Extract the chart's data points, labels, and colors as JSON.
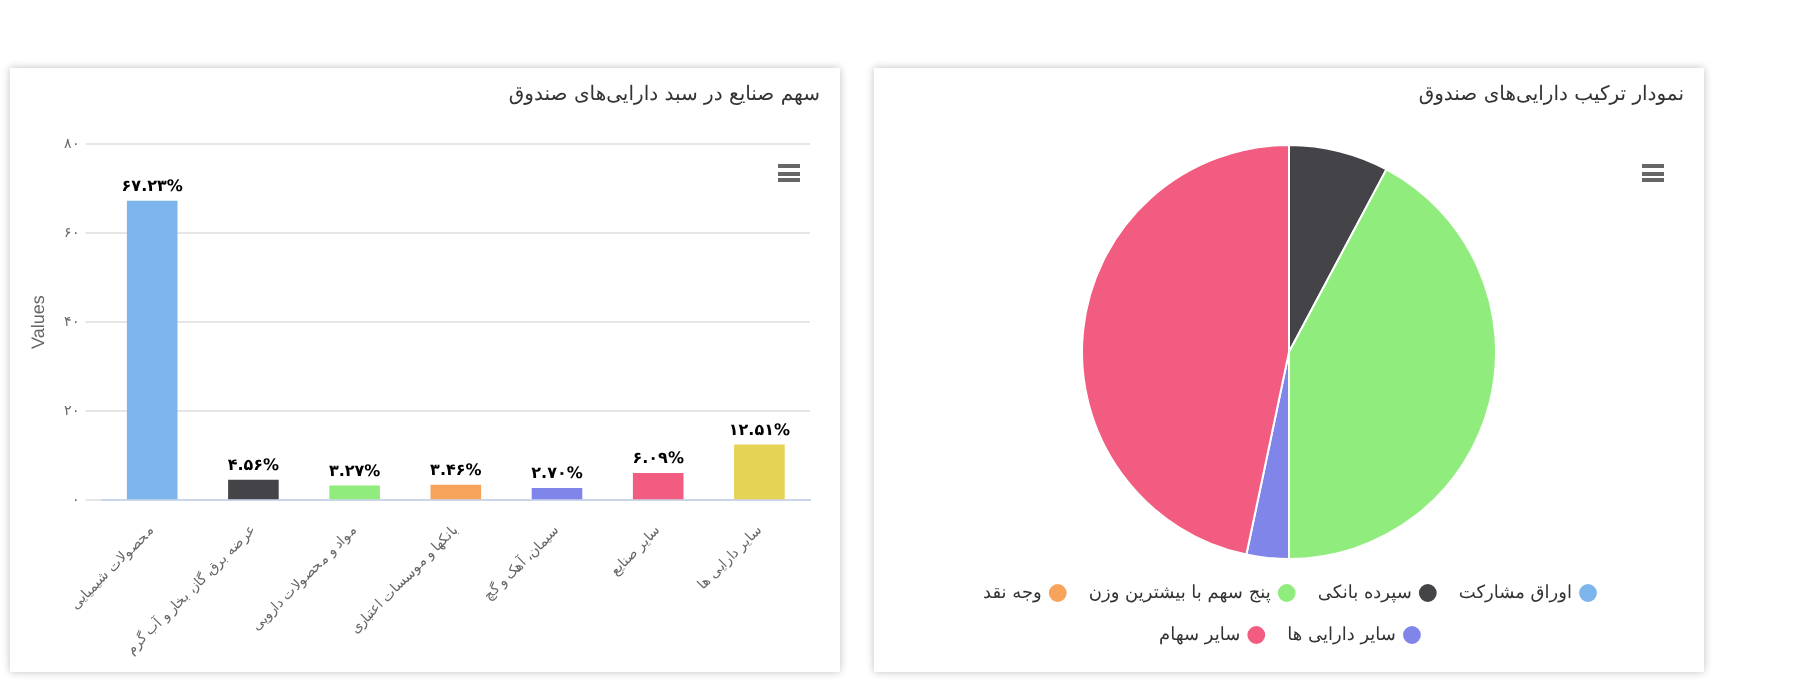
{
  "chart_data": [
    {
      "type": "bar",
      "title": "سهم صنایع در سبد دارایی‌های صندوق",
      "ylabel": "Values",
      "categories": [
        "محصولات شیمیایی",
        "عرضه برق، گاز، بخار و آب گرم",
        "مواد و محصولات دارویی",
        "بانکها و موسسات اعتباری",
        "سیمان، آهک و گچ",
        "سایر صنایع",
        "سایر دارایی ها"
      ],
      "values": [
        67.23,
        4.56,
        3.27,
        3.46,
        2.7,
        6.09,
        12.51
      ],
      "value_labels": [
        "۶۷.۲۳%",
        "۴.۵۶%",
        "۳.۲۷%",
        "۳.۴۶%",
        "۲.۷۰%",
        "۶.۰۹%",
        "۱۲.۵۱%"
      ],
      "colors": [
        "#7cb5ec",
        "#434348",
        "#90ed7d",
        "#f7a35c",
        "#8085e9",
        "#f15c80",
        "#e4d354"
      ],
      "ylim": [
        0,
        80
      ],
      "yticks": [
        {
          "value": 0,
          "label": "۰"
        },
        {
          "value": 20,
          "label": "۲۰"
        },
        {
          "value": 40,
          "label": "۴۰"
        },
        {
          "value": 60,
          "label": "۶۰"
        },
        {
          "value": 80,
          "label": "۸۰"
        }
      ],
      "grid": "y",
      "legend": false
    },
    {
      "type": "pie",
      "title": "نمودار ترکیب دارایی‌های صندوق",
      "categories": [
        "اوراق مشارکت",
        "سپرده بانکی",
        "پنج سهم با بیشترین وزن",
        "وجه نقد",
        "سایر دارایی ها",
        "سایر سهام"
      ],
      "values": [
        0,
        7.8,
        42.2,
        0,
        3.3,
        46.7
      ],
      "colors": [
        "#7cb5ec",
        "#434348",
        "#90ed7d",
        "#f7a35c",
        "#8085e9",
        "#f15c80"
      ],
      "legend": "bottom"
    }
  ]
}
